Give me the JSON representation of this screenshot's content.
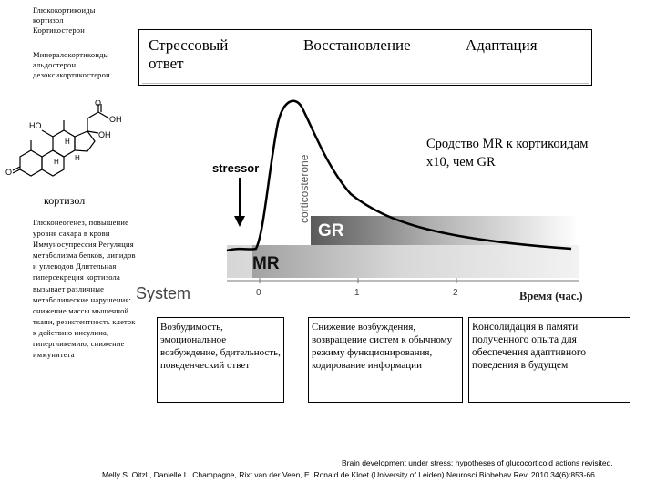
{
  "hormones": {
    "glucocorticoids": "Глюкокортикоиды",
    "cortisol_lower": "кортизол",
    "corticosterone": "Кортикостерон",
    "mineralocorticoids": "Минералокортикоиды",
    "aldosterone": "альдостерон",
    "deoxycorticosterone": "дезоксикортикостерон"
  },
  "molecule_label": "кортизол",
  "effects_text": "Глюконеогенез, повышение уровня сахара в крови Иммуносупрессия Регуляция метаболизма белков, липидов и углеводов Длительная гиперсекреция кортизола вызывает различные метаболические нарушения: снижение массы мышечной ткани, резистентность клеток к действию инсулина, гипергликемию, снижение иммунитета",
  "phases": {
    "stress": "Стрессовый ответ",
    "recovery": "Восстановление",
    "adaptation": "Адаптация"
  },
  "affinity_note": "Сродство MR к кортикоидам х10, чем GR",
  "graph": {
    "ylabel": "corticosterone",
    "stressor": "stressor",
    "gr": "GR",
    "mr": "MR",
    "system": "System",
    "ticks": [
      "0",
      "1",
      "2"
    ],
    "time_label": "Время (час.)"
  },
  "descriptions": {
    "stress": "Возбудимость, эмоциональное возбуждение, бдительность, поведенческий ответ",
    "recovery": "Снижение возбуждения, возвращение систем к обычному режиму функционирования, кодирование информации",
    "adaptation": "Консолидация в памяти полученного опыта для обеспечения адаптивного поведения в будущем"
  },
  "citation": {
    "line1": "Brain development under stress: hypotheses of glucocorticoid actions revisited.",
    "line2": "Melly S. Oitzl , Danielle L. Champagne, Rixt van der Veen, E. Ronald de Kloet (University of Leiden) Neurosci Biobehav Rev. 2010 34(6):853-66."
  },
  "structure_labels": {
    "ho": "HO",
    "o_top": "O",
    "oh_top": "OH",
    "oh_right": "OH",
    "h1": "H",
    "h2": "H",
    "h3": "H",
    "o_left": "O"
  }
}
